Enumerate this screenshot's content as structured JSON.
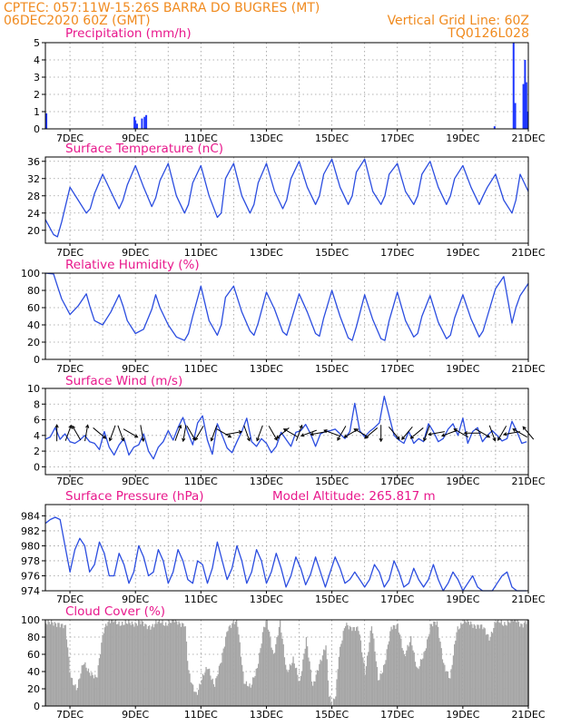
{
  "header": {
    "line1_left": "CPTEC:  057:11W-15:26S  BARRA DO BUGRES (MT)",
    "line2_left": "06DEC2020 60Z (GMT)",
    "line2_right": "Vertical Grid Line: 60Z",
    "line3_right": "TQ0126L028"
  },
  "x_axis": {
    "tick_labels": [
      "7DEC",
      "9DEC",
      "11DEC",
      "13DEC",
      "15DEC",
      "17DEC",
      "19DEC",
      "21DEC"
    ],
    "tick_days": [
      7,
      9,
      11,
      13,
      15,
      17,
      19,
      21
    ],
    "range_days": [
      6.25,
      21.0
    ]
  },
  "colors": {
    "line": "#2b4de0",
    "bar": "#1f37ff",
    "cloud": "#a6a6a6",
    "title": "#e8188c",
    "header": "#f08a1e"
  },
  "chart_data": [
    {
      "type": "bar",
      "title": "Precipitation (mm/h)",
      "ylim": [
        0,
        5
      ],
      "yticks": [
        "0",
        "1",
        "2",
        "3",
        "4",
        "5"
      ],
      "points": [
        {
          "x": 6.28,
          "y": 0.9
        },
        {
          "x": 8.97,
          "y": 0.7
        },
        {
          "x": 9.0,
          "y": 0.5
        },
        {
          "x": 9.05,
          "y": 0.3
        },
        {
          "x": 9.2,
          "y": 0.6
        },
        {
          "x": 9.28,
          "y": 0.7
        },
        {
          "x": 9.33,
          "y": 0.8
        },
        {
          "x": 19.97,
          "y": 0.15
        },
        {
          "x": 20.55,
          "y": 5.0
        },
        {
          "x": 20.6,
          "y": 1.5
        },
        {
          "x": 20.85,
          "y": 2.6
        },
        {
          "x": 20.9,
          "y": 4.0
        },
        {
          "x": 20.94,
          "y": 2.7
        },
        {
          "x": 20.98,
          "y": 1.0
        }
      ]
    },
    {
      "type": "line",
      "title": "Surface Temperature (nC)",
      "ylim": [
        17,
        37
      ],
      "yticks": [
        "20",
        "24",
        "28",
        "32",
        "36"
      ],
      "x": [
        6.25,
        6.5,
        6.62,
        6.75,
        7.0,
        7.25,
        7.5,
        7.62,
        7.75,
        8.0,
        8.25,
        8.5,
        8.62,
        8.75,
        9.0,
        9.25,
        9.5,
        9.62,
        9.75,
        10.0,
        10.25,
        10.5,
        10.62,
        10.75,
        11.0,
        11.25,
        11.5,
        11.62,
        11.75,
        12.0,
        12.25,
        12.5,
        12.62,
        12.75,
        13.0,
        13.25,
        13.5,
        13.62,
        13.75,
        14.0,
        14.25,
        14.5,
        14.62,
        14.75,
        15.0,
        15.25,
        15.5,
        15.62,
        15.75,
        16.0,
        16.25,
        16.5,
        16.62,
        16.75,
        17.0,
        17.25,
        17.5,
        17.62,
        17.75,
        18.0,
        18.25,
        18.5,
        18.62,
        18.75,
        19.0,
        19.25,
        19.5,
        19.62,
        19.75,
        20.0,
        20.25,
        20.5,
        20.62,
        20.75,
        21.0
      ],
      "y": [
        22.5,
        19.0,
        18.5,
        22,
        30,
        27,
        24,
        25,
        28.5,
        33,
        29,
        25,
        27,
        30.5,
        35,
        30,
        25.5,
        27.5,
        31.5,
        35.5,
        28,
        24,
        26,
        31,
        35,
        28,
        23,
        24,
        32,
        35.5,
        28,
        24,
        26,
        31,
        35.5,
        29,
        25,
        27,
        32,
        36,
        30,
        26,
        28,
        33,
        36.5,
        30,
        26,
        28,
        33.5,
        36.5,
        29,
        26,
        28,
        33,
        35.5,
        29,
        26,
        28,
        33,
        36,
        30,
        26,
        28,
        32,
        35,
        30,
        26,
        28,
        30,
        33,
        27,
        24,
        27,
        33,
        29
      ]
    },
    {
      "type": "line",
      "title": "Relative Humidity (%)",
      "ylim": [
        0,
        100
      ],
      "yticks": [
        "0",
        "20",
        "40",
        "60",
        "80",
        "100"
      ],
      "x": [
        6.25,
        6.5,
        6.62,
        6.75,
        7.0,
        7.25,
        7.5,
        7.62,
        7.75,
        8.0,
        8.25,
        8.5,
        8.62,
        8.75,
        9.0,
        9.25,
        9.5,
        9.62,
        9.75,
        10.0,
        10.25,
        10.5,
        10.62,
        10.75,
        11.0,
        11.25,
        11.5,
        11.62,
        11.75,
        12.0,
        12.25,
        12.5,
        12.62,
        12.75,
        13.0,
        13.25,
        13.5,
        13.62,
        13.75,
        14.0,
        14.25,
        14.5,
        14.62,
        14.75,
        15.0,
        15.25,
        15.5,
        15.62,
        15.75,
        16.0,
        16.25,
        16.5,
        16.62,
        16.75,
        17.0,
        17.25,
        17.5,
        17.62,
        17.75,
        18.0,
        18.25,
        18.5,
        18.62,
        18.75,
        19.0,
        19.25,
        19.5,
        19.62,
        19.75,
        20.0,
        20.25,
        20.5,
        20.62,
        20.75,
        21.0
      ],
      "y": [
        100,
        99,
        85,
        70,
        52,
        62,
        76,
        60,
        45,
        40,
        55,
        75,
        62,
        45,
        30,
        35,
        58,
        75,
        60,
        40,
        26,
        22,
        30,
        50,
        85,
        45,
        28,
        40,
        72,
        85,
        55,
        33,
        28,
        42,
        78,
        58,
        32,
        28,
        44,
        76,
        55,
        30,
        27,
        48,
        80,
        50,
        25,
        22,
        38,
        75,
        46,
        24,
        22,
        45,
        78,
        45,
        26,
        30,
        50,
        74,
        43,
        24,
        28,
        48,
        75,
        47,
        26,
        33,
        50,
        82,
        96,
        42,
        60,
        74,
        88
      ]
    },
    {
      "type": "line",
      "title": "Surface Wind (m/s)",
      "ylim": [
        -1,
        10
      ],
      "yticks": [
        "0",
        "2",
        "4",
        "6",
        "8",
        "10"
      ],
      "x": [
        6.25,
        6.4,
        6.55,
        6.7,
        6.85,
        7.0,
        7.15,
        7.3,
        7.45,
        7.6,
        7.75,
        7.9,
        8.05,
        8.2,
        8.35,
        8.5,
        8.65,
        8.8,
        8.95,
        9.1,
        9.25,
        9.4,
        9.55,
        9.7,
        9.85,
        10.0,
        10.15,
        10.3,
        10.45,
        10.6,
        10.75,
        10.9,
        11.05,
        11.2,
        11.35,
        11.5,
        11.65,
        11.8,
        11.95,
        12.1,
        12.25,
        12.4,
        12.55,
        12.7,
        12.85,
        13.0,
        13.15,
        13.3,
        13.45,
        13.6,
        13.75,
        13.9,
        14.05,
        14.2,
        14.35,
        14.5,
        14.65,
        14.8,
        14.95,
        15.1,
        15.25,
        15.4,
        15.55,
        15.7,
        15.85,
        16.0,
        16.15,
        16.3,
        16.45,
        16.6,
        16.75,
        16.9,
        17.05,
        17.2,
        17.35,
        17.5,
        17.65,
        17.8,
        17.95,
        18.1,
        18.25,
        18.4,
        18.55,
        18.7,
        18.85,
        19.0,
        19.15,
        19.3,
        19.45,
        19.6,
        19.75,
        19.9,
        20.05,
        20.2,
        20.35,
        20.5,
        20.65,
        20.8,
        20.95
      ],
      "y": [
        3.5,
        3.8,
        5.0,
        3.5,
        4.2,
        3.2,
        3.0,
        3.4,
        4.0,
        3.2,
        3.0,
        2.2,
        4.5,
        2.5,
        1.5,
        2.8,
        3.6,
        1.5,
        2.5,
        2.8,
        4.2,
        2.0,
        1.0,
        2.5,
        3.2,
        4.6,
        3.4,
        5.0,
        6.3,
        4.4,
        2.8,
        5.6,
        6.5,
        3.4,
        1.6,
        5.5,
        4.0,
        2.4,
        1.8,
        3.2,
        4.5,
        6.2,
        3.2,
        2.6,
        3.6,
        3.0,
        1.8,
        2.6,
        4.4,
        3.5,
        2.6,
        4.4,
        4.6,
        5.4,
        4.2,
        2.6,
        4.2,
        4.5,
        4.6,
        4.8,
        4.2,
        3.6,
        4.5,
        8.1,
        4.6,
        3.8,
        4.5,
        5.0,
        5.6,
        9.0,
        6.5,
        4.0,
        3.4,
        3.0,
        4.5,
        3.0,
        3.6,
        3.2,
        5.5,
        4.5,
        3.2,
        3.6,
        4.8,
        5.5,
        4.0,
        6.2,
        3.0,
        4.5,
        5.0,
        3.2,
        4.0,
        4.6,
        4.0,
        3.3,
        3.6,
        5.8,
        4.5,
        3.0,
        3.2
      ]
    },
    {
      "type": "line",
      "title": "Surface Pressure (hPa)",
      "annotation": "Model Altitude: 265.817 m",
      "ylim": [
        974,
        985.5
      ],
      "yticks": [
        "974",
        "976",
        "978",
        "980",
        "982",
        "984"
      ],
      "x": [
        6.25,
        6.4,
        6.55,
        6.7,
        6.85,
        7.0,
        7.15,
        7.3,
        7.45,
        7.6,
        7.75,
        7.9,
        8.05,
        8.2,
        8.35,
        8.5,
        8.65,
        8.8,
        8.95,
        9.1,
        9.25,
        9.4,
        9.55,
        9.7,
        9.85,
        10.0,
        10.15,
        10.3,
        10.45,
        10.6,
        10.75,
        10.9,
        11.05,
        11.2,
        11.35,
        11.5,
        11.65,
        11.8,
        11.95,
        12.1,
        12.25,
        12.4,
        12.55,
        12.7,
        12.85,
        13.0,
        13.15,
        13.3,
        13.45,
        13.6,
        13.75,
        13.9,
        14.05,
        14.2,
        14.35,
        14.5,
        14.65,
        14.8,
        14.95,
        15.1,
        15.25,
        15.4,
        15.55,
        15.7,
        15.85,
        16.0,
        16.15,
        16.3,
        16.45,
        16.6,
        16.75,
        16.9,
        17.05,
        17.2,
        17.35,
        17.5,
        17.65,
        17.8,
        17.95,
        18.1,
        18.25,
        18.4,
        18.55,
        18.7,
        18.85,
        19.0,
        19.15,
        19.3,
        19.45,
        19.6,
        19.75,
        19.9,
        20.05,
        20.2,
        20.35,
        20.5,
        20.65,
        20.8,
        20.95
      ],
      "y": [
        983.0,
        983.5,
        983.8,
        983.5,
        980.0,
        976.5,
        979.5,
        981.0,
        980.0,
        976.5,
        977.5,
        980.5,
        979.0,
        976.0,
        976.0,
        979.0,
        977.5,
        975.0,
        976.5,
        980.0,
        978.5,
        976.0,
        976.5,
        979.5,
        978.0,
        975.0,
        976.5,
        979.5,
        978.0,
        975.5,
        975.0,
        978.0,
        977.5,
        975.0,
        977.0,
        980.5,
        978.0,
        975.5,
        977.0,
        980.0,
        978.0,
        975.0,
        976.5,
        979.5,
        978.0,
        975.0,
        976.5,
        979.0,
        977.0,
        974.5,
        976.0,
        978.5,
        977.0,
        974.8,
        976.2,
        978.5,
        976.5,
        974.5,
        976.5,
        978.5,
        977.0,
        975.0,
        975.5,
        976.5,
        975.5,
        974.5,
        975.5,
        977.5,
        976.5,
        974.5,
        975.5,
        978.0,
        976.5,
        974.5,
        975.0,
        977.0,
        975.5,
        974.5,
        975.5,
        977.5,
        975.5,
        974.0,
        975.0,
        976.5,
        975.5,
        974.0,
        975.0,
        976.0,
        974.5,
        974.0,
        973.5,
        974.0,
        975.0,
        976.0,
        976.5,
        974.5,
        973.0,
        973.2,
        973.5
      ]
    },
    {
      "type": "area",
      "title": "Cloud Cover (%)",
      "ylim": [
        0,
        100
      ],
      "yticks": [
        "0",
        "20",
        "40",
        "60",
        "80",
        "100"
      ],
      "x": [
        6.25,
        6.45,
        6.65,
        6.85,
        7.0,
        7.2,
        7.4,
        7.6,
        7.8,
        8.0,
        8.1,
        8.3,
        8.5,
        8.7,
        8.9,
        9.1,
        9.3,
        9.5,
        9.7,
        9.9,
        10.1,
        10.3,
        10.5,
        10.6,
        10.7,
        10.85,
        11.0,
        11.2,
        11.4,
        11.6,
        11.8,
        12.0,
        12.1,
        12.3,
        12.5,
        12.7,
        12.9,
        13.0,
        13.2,
        13.4,
        13.6,
        13.8,
        14.0,
        14.2,
        14.4,
        14.6,
        14.8,
        14.9,
        15.0,
        15.1,
        15.2,
        15.4,
        15.6,
        15.8,
        16.0,
        16.2,
        16.4,
        16.6,
        16.8,
        17.0,
        17.2,
        17.4,
        17.6,
        17.8,
        18.0,
        18.2,
        18.4,
        18.6,
        18.8,
        19.0,
        19.2,
        19.4,
        19.6,
        19.8,
        20.0,
        20.2,
        20.4,
        20.6,
        20.8,
        21.0
      ],
      "y": [
        97,
        95,
        97,
        90,
        35,
        20,
        50,
        40,
        30,
        88,
        97,
        98,
        97,
        95,
        96,
        98,
        92,
        94,
        97,
        96,
        98,
        97,
        96,
        40,
        25,
        15,
        30,
        45,
        25,
        50,
        92,
        96,
        95,
        30,
        20,
        45,
        90,
        97,
        60,
        96,
        40,
        55,
        25,
        80,
        20,
        50,
        70,
        10,
        3,
        15,
        60,
        94,
        92,
        88,
        40,
        94,
        30,
        50,
        90,
        96,
        55,
        80,
        40,
        60,
        95,
        95,
        50,
        30,
        90,
        98,
        96,
        94,
        90,
        80,
        98,
        96,
        98,
        100,
        95,
        98
      ]
    }
  ]
}
